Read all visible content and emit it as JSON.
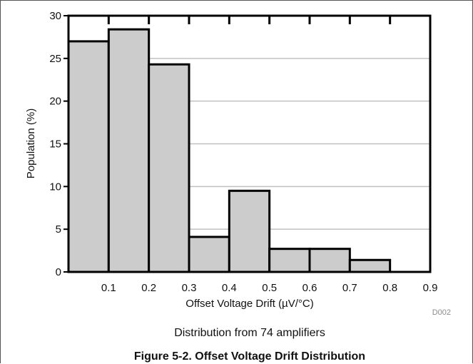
{
  "chart_data": {
    "type": "bar",
    "bin_edges": [
      0.0,
      0.1,
      0.2,
      0.3,
      0.4,
      0.5,
      0.6,
      0.7,
      0.8,
      0.9
    ],
    "values": [
      27.0,
      28.4,
      24.3,
      4.1,
      9.5,
      2.7,
      2.7,
      1.4,
      0
    ],
    "x_ticks": [
      "0.1",
      "0.2",
      "0.3",
      "0.4",
      "0.5",
      "0.6",
      "0.7",
      "0.8",
      "0.9"
    ],
    "y_ticks": [
      "0",
      "5",
      "10",
      "15",
      "20",
      "25",
      "30"
    ],
    "xlabel": "Offset Voltage Drift (µV/°C)",
    "ylabel": "Population (%)",
    "xlim": [
      0,
      0.9
    ],
    "ylim": [
      0,
      30
    ],
    "grid": "horizontal",
    "bar_color": "#cccccc",
    "bar_edge_color": "#000000",
    "grid_color": "#c0c0c0"
  },
  "figure_code": "D002",
  "subcaption": "Distribution from 74 amplifiers",
  "caption": "Figure 5-2. Offset Voltage Drift Distribution"
}
